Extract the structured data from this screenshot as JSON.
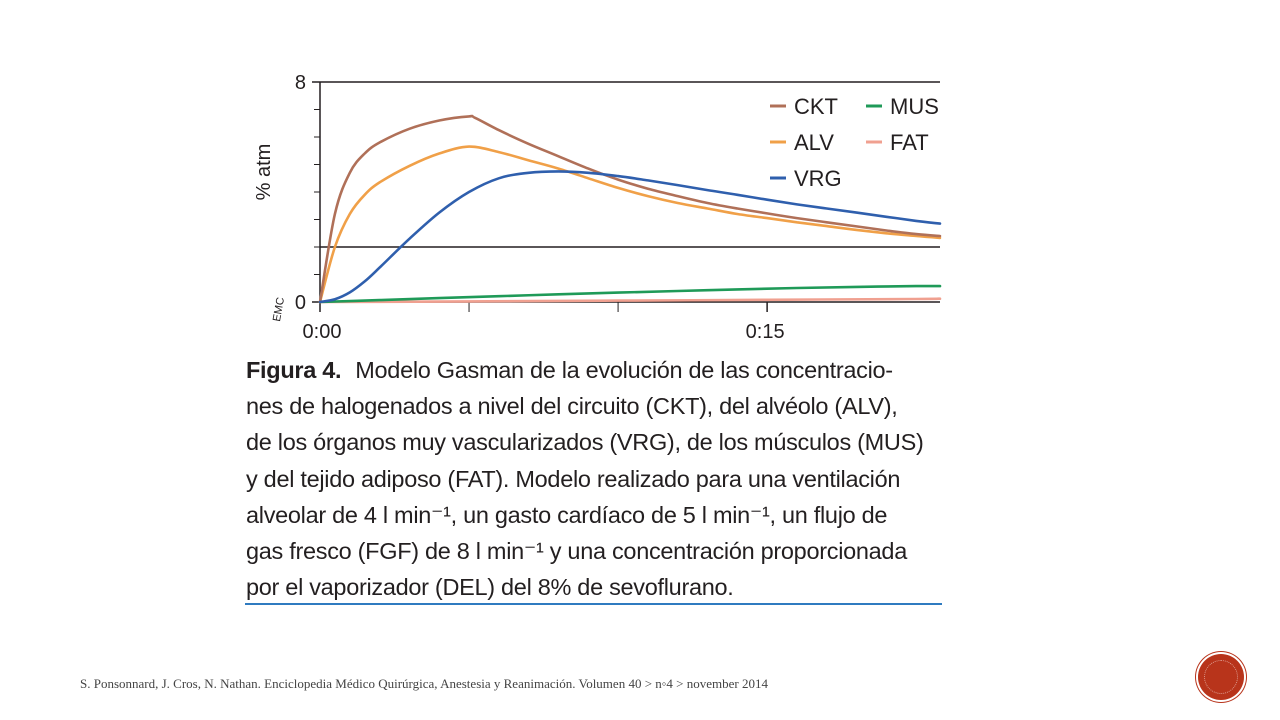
{
  "chart_data": {
    "type": "line",
    "title": "",
    "xlabel": "",
    "ylabel": "% atm",
    "y_ticks": [
      {
        "value": 0,
        "label": "0"
      },
      {
        "value": 8,
        "label": "8"
      }
    ],
    "x_ticks": [
      {
        "value": 0,
        "label": "0:00"
      },
      {
        "value": 15,
        "label": "0:15"
      }
    ],
    "xlim": [
      0,
      20.8
    ],
    "ylim": [
      0,
      8
    ],
    "y_minor_ticks": [
      1,
      2,
      3,
      4,
      5,
      6,
      7
    ],
    "x_minor_ticks": [
      5,
      10
    ],
    "reference_line_y": 2,
    "emc_label": "EMC",
    "grid": false,
    "legend_position": "top-right",
    "series": [
      {
        "name": "CKT",
        "color": "#b07058",
        "x": [
          0,
          0.5,
          1,
          1.5,
          2,
          3,
          4,
          5,
          5.2,
          6,
          7,
          8,
          9,
          10,
          11,
          12,
          13,
          14,
          15,
          16,
          17,
          18,
          19,
          20,
          20.8
        ],
        "y": [
          0,
          3.2,
          4.7,
          5.4,
          5.8,
          6.3,
          6.6,
          6.75,
          6.7,
          6.25,
          5.75,
          5.3,
          4.85,
          4.45,
          4.12,
          3.85,
          3.6,
          3.4,
          3.22,
          3.05,
          2.9,
          2.75,
          2.6,
          2.47,
          2.4
        ]
      },
      {
        "name": "ALV",
        "color": "#f0a048",
        "x": [
          0,
          0.5,
          1,
          1.5,
          2,
          3,
          4,
          5,
          6,
          7,
          8,
          9,
          10,
          11,
          12,
          13,
          14,
          15,
          16,
          17,
          18,
          19,
          20,
          20.8
        ],
        "y": [
          0,
          2.0,
          3.2,
          3.9,
          4.35,
          4.95,
          5.4,
          5.65,
          5.45,
          5.15,
          4.85,
          4.5,
          4.15,
          3.85,
          3.6,
          3.4,
          3.2,
          3.05,
          2.9,
          2.76,
          2.62,
          2.5,
          2.4,
          2.33
        ]
      },
      {
        "name": "VRG",
        "color": "#2f5fad",
        "x": [
          0,
          0.5,
          1,
          1.5,
          2,
          3,
          4,
          5,
          6,
          7,
          8,
          9,
          10,
          11,
          12,
          13,
          14,
          15,
          16,
          17,
          18,
          19,
          20,
          20.8
        ],
        "y": [
          0,
          0.1,
          0.35,
          0.75,
          1.25,
          2.3,
          3.25,
          4.0,
          4.5,
          4.7,
          4.75,
          4.7,
          4.58,
          4.42,
          4.25,
          4.07,
          3.9,
          3.72,
          3.55,
          3.4,
          3.25,
          3.1,
          2.95,
          2.85
        ]
      },
      {
        "name": "MUS",
        "color": "#1f9a58",
        "x": [
          0,
          2,
          4,
          6,
          8,
          10,
          12,
          14,
          16,
          18,
          20,
          20.8
        ],
        "y": [
          0,
          0.07,
          0.14,
          0.21,
          0.28,
          0.34,
          0.4,
          0.46,
          0.51,
          0.55,
          0.58,
          0.58
        ]
      },
      {
        "name": "FAT",
        "color": "#f0a090",
        "x": [
          0,
          5,
          10,
          15,
          20,
          20.8
        ],
        "y": [
          0,
          0.02,
          0.05,
          0.08,
          0.11,
          0.12
        ]
      }
    ]
  },
  "caption": {
    "label": "Figura 4.",
    "lines": [
      "Modelo Gasman de la evolución de las concentracio-",
      "nes de halogenados a nivel del circuito (CKT), del alvéolo (ALV),",
      "de los órganos muy vascularizados (VRG), de los músculos (MUS)",
      "y del tejido adiposo (FAT). Modelo realizado para una ventilación",
      "alveolar de 4 l min⁻¹, un gasto cardíaco de 5 l min⁻¹, un flujo de",
      "gas fresco (FGF) de 8 l min⁻¹ y una concentración proporcionada",
      "por el vaporizador (DEL) del 8% de sevoflurano."
    ]
  },
  "footer": {
    "source": "S. Ponsonnard, J. Cros, N. Nathan. Enciclopedia Médico Quirúrgica, Anestesia y Reanimación. Volumen 40 > n◦4 > november 2014"
  },
  "colors": {
    "axis": "#231f20",
    "caption_rule": "#2f7bc0",
    "badge": "#b8341b"
  }
}
